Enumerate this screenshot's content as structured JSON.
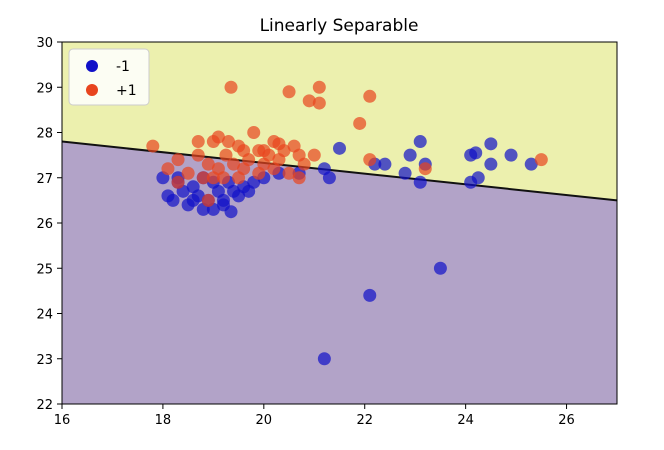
{
  "chart_data": {
    "type": "scatter",
    "title": "Linearly Separable",
    "xlabel": "",
    "ylabel": "",
    "xlim": [
      16,
      27
    ],
    "ylim": [
      22,
      30
    ],
    "xticks": [
      "16",
      "18",
      "20",
      "22",
      "24",
      "26"
    ],
    "yticks": [
      "22",
      "23",
      "24",
      "25",
      "26",
      "27",
      "28",
      "29",
      "30"
    ],
    "grid": false,
    "legend_position": "top-left",
    "decision_boundary": {
      "x": [
        16,
        27
      ],
      "y": [
        27.8,
        26.5
      ]
    },
    "region_colors": {
      "above": "#ecf0ae",
      "below": "#b2a3c8",
      "boundary": "#111111"
    },
    "series": [
      {
        "name": "-1",
        "color": "#1010c8",
        "points": [
          [
            18.0,
            27.0
          ],
          [
            18.1,
            26.6
          ],
          [
            18.2,
            26.5
          ],
          [
            18.3,
            26.9
          ],
          [
            18.4,
            26.7
          ],
          [
            18.5,
            26.4
          ],
          [
            18.6,
            26.8
          ],
          [
            18.7,
            26.6
          ],
          [
            18.8,
            27.0
          ],
          [
            18.9,
            26.5
          ],
          [
            19.0,
            26.3
          ],
          [
            19.1,
            26.7
          ],
          [
            19.2,
            26.5
          ],
          [
            19.3,
            26.9
          ],
          [
            19.35,
            26.25
          ],
          [
            19.5,
            26.6
          ],
          [
            19.6,
            26.8
          ],
          [
            19.7,
            26.7
          ],
          [
            18.3,
            27.0
          ],
          [
            18.6,
            26.5
          ],
          [
            18.8,
            26.3
          ],
          [
            19.0,
            26.9
          ],
          [
            19.2,
            26.4
          ],
          [
            19.4,
            26.7
          ],
          [
            19.8,
            26.9
          ],
          [
            20.0,
            27.0
          ],
          [
            20.3,
            27.1
          ],
          [
            20.7,
            27.1
          ],
          [
            21.2,
            27.2
          ],
          [
            21.3,
            27.0
          ],
          [
            21.5,
            27.65
          ],
          [
            22.2,
            27.3
          ],
          [
            22.4,
            27.3
          ],
          [
            22.8,
            27.1
          ],
          [
            22.9,
            27.5
          ],
          [
            23.1,
            27.8
          ],
          [
            23.1,
            26.9
          ],
          [
            23.2,
            27.3
          ],
          [
            24.1,
            27.5
          ],
          [
            24.1,
            26.9
          ],
          [
            24.2,
            27.55
          ],
          [
            24.25,
            27.0
          ],
          [
            24.5,
            27.75
          ],
          [
            24.5,
            27.3
          ],
          [
            24.9,
            27.5
          ],
          [
            25.3,
            27.3
          ],
          [
            23.5,
            25.0
          ],
          [
            22.1,
            24.4
          ],
          [
            21.2,
            23.0
          ]
        ]
      },
      {
        "name": "+1",
        "color": "#e8441e",
        "points": [
          [
            17.8,
            27.7
          ],
          [
            18.1,
            27.2
          ],
          [
            18.3,
            27.4
          ],
          [
            18.3,
            26.9
          ],
          [
            18.7,
            27.8
          ],
          [
            18.7,
            27.5
          ],
          [
            18.8,
            27.0
          ],
          [
            18.9,
            27.3
          ],
          [
            18.9,
            26.5
          ],
          [
            19.0,
            27.8
          ],
          [
            19.1,
            27.9
          ],
          [
            19.1,
            27.2
          ],
          [
            19.2,
            27.0
          ],
          [
            19.25,
            27.5
          ],
          [
            19.3,
            27.8
          ],
          [
            19.35,
            29.0
          ],
          [
            19.4,
            27.3
          ],
          [
            19.5,
            27.7
          ],
          [
            19.6,
            27.2
          ],
          [
            19.6,
            27.6
          ],
          [
            19.7,
            27.4
          ],
          [
            19.8,
            28.0
          ],
          [
            19.9,
            27.1
          ],
          [
            19.9,
            27.6
          ],
          [
            20.0,
            27.3
          ],
          [
            20.1,
            27.5
          ],
          [
            20.2,
            27.2
          ],
          [
            20.3,
            27.4
          ],
          [
            20.3,
            27.75
          ],
          [
            20.4,
            27.6
          ],
          [
            20.5,
            28.9
          ],
          [
            20.5,
            27.1
          ],
          [
            20.6,
            27.7
          ],
          [
            20.7,
            27.5
          ],
          [
            20.7,
            27.0
          ],
          [
            20.8,
            27.3
          ],
          [
            20.9,
            28.7
          ],
          [
            21.0,
            27.5
          ],
          [
            21.1,
            29.0
          ],
          [
            21.1,
            28.65
          ],
          [
            21.9,
            28.2
          ],
          [
            22.1,
            28.8
          ],
          [
            22.1,
            27.4
          ],
          [
            23.2,
            27.2
          ],
          [
            25.5,
            27.4
          ],
          [
            18.5,
            27.1
          ],
          [
            19.0,
            27.0
          ],
          [
            19.5,
            27.0
          ],
          [
            20.0,
            27.6
          ],
          [
            20.2,
            27.8
          ]
        ]
      }
    ]
  }
}
